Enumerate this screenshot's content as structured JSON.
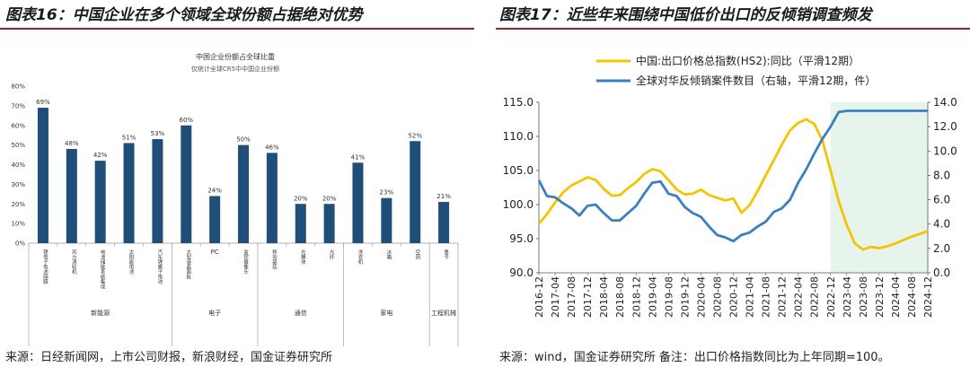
{
  "left_panel": {
    "header": "图表16：中国企业在多个领域全球份额占据绝对优势",
    "source": "来源：日经新闻网，上市公司财报，新浪财经，国金证券研究所"
  },
  "right_panel": {
    "header": "图表17：近些年来围绕中国低价出口的反倾销调查频发",
    "source": "来源：wind，国金证券研究所 备注：出口价格指数同比为上年同期=100。"
  },
  "colors": {
    "bar": "#1f4e79",
    "line_price": "#f5c400",
    "line_cases": "#3b7fbf",
    "shade": "#e6f4ec",
    "header_rule": "#8c2a2a"
  },
  "chart_data": [
    {
      "type": "bar",
      "title": "中国企业份额占全球比重",
      "subtitle": "仅统计全球CR5中中国企业份额",
      "categories": [
        "锂电子电池隔膜",
        "风力涡轮机",
        "电池储能系统集成",
        "太阳能电池",
        "汽车锂离子电池",
        "大型液晶面板",
        "PC",
        "监控摄像头",
        "移动基站",
        "光模块",
        "光纤",
        "洗衣机",
        "冰箱",
        "空调",
        "重卡"
      ],
      "values": [
        69,
        48,
        42,
        51,
        53,
        60,
        24,
        50,
        46,
        20,
        20,
        41,
        23,
        52,
        21
      ],
      "data_labels": [
        "69%",
        "48%",
        "42%",
        "51%",
        "53%",
        "60%",
        "24%",
        "50%",
        "46%",
        "20%",
        "20%",
        "41%",
        "23%",
        "52%",
        "21%"
      ],
      "groups": [
        {
          "name": "新能源",
          "start": 0,
          "end": 4
        },
        {
          "name": "电子",
          "start": 5,
          "end": 7
        },
        {
          "name": "通信",
          "start": 8,
          "end": 10
        },
        {
          "name": "家电",
          "start": 11,
          "end": 13
        },
        {
          "name": "工程机械",
          "start": 14,
          "end": 14
        }
      ],
      "ylim": [
        0,
        80
      ],
      "yticks": [
        "0%",
        "10%",
        "20%",
        "30%",
        "40%",
        "50%",
        "60%",
        "70%",
        "80%"
      ]
    },
    {
      "type": "line",
      "x_range": [
        "2016-12",
        "2024-12"
      ],
      "xtick_labels": [
        "2016-12",
        "2017-04",
        "2017-08",
        "2017-12",
        "2018-04",
        "2018-08",
        "2018-12",
        "2019-04",
        "2019-08",
        "2019-12",
        "2020-04",
        "2020-08",
        "2020-12",
        "2021-04",
        "2021-08",
        "2021-12",
        "2022-04",
        "2022-08",
        "2022-12",
        "2023-04",
        "2023-08",
        "2023-12",
        "2024-04",
        "2024-08",
        "2024-12"
      ],
      "shaded_region": [
        "2022-12",
        "2024-12"
      ],
      "ylim_left": [
        90,
        115
      ],
      "yticks_left": [
        "90.0",
        "95.0",
        "100.0",
        "105.0",
        "110.0",
        "115.0"
      ],
      "ylim_right": [
        0,
        14
      ],
      "yticks_right": [
        "0.0",
        "2.0",
        "4.0",
        "6.0",
        "8.0",
        "10.0",
        "12.0",
        "14.0"
      ],
      "legend_location": "top",
      "series": [
        {
          "name": "中国:出口价格总指数(HS2):同比（平滑12期）",
          "axis": "left",
          "months": [
            0,
            2,
            4,
            6,
            8,
            10,
            12,
            14,
            16,
            18,
            20,
            22,
            24,
            26,
            28,
            30,
            32,
            34,
            36,
            38,
            40,
            42,
            44,
            46,
            48,
            50,
            52,
            54,
            56,
            58,
            60,
            62,
            64,
            66,
            68,
            70,
            72,
            74,
            76,
            78,
            80,
            82,
            84,
            86,
            88,
            90,
            92,
            94,
            96
          ],
          "values": [
            97.2,
            98.6,
            100.3,
            101.8,
            102.8,
            103.4,
            104.0,
            103.6,
            102.3,
            101.3,
            101.4,
            102.4,
            103.3,
            104.5,
            105.2,
            104.9,
            103.6,
            102.2,
            101.5,
            101.6,
            102.2,
            101.4,
            101.0,
            100.6,
            100.9,
            98.8,
            99.9,
            102.0,
            104.3,
            106.5,
            108.8,
            110.9,
            112.0,
            112.5,
            111.8,
            109.4,
            105.0,
            100.5,
            97.0,
            94.3,
            93.4,
            93.8,
            93.6,
            93.9,
            94.3,
            94.8,
            95.3,
            95.7,
            96.1
          ]
        },
        {
          "name": "全球对华反倾销案件数目（右轴，平滑12期，件）",
          "axis": "right",
          "months": [
            0,
            2,
            4,
            6,
            8,
            10,
            12,
            14,
            16,
            18,
            20,
            22,
            24,
            26,
            28,
            30,
            32,
            34,
            36,
            38,
            40,
            42,
            44,
            46,
            48,
            50,
            52,
            54,
            56,
            58,
            60,
            62,
            64,
            66,
            68,
            70,
            72,
            74,
            76,
            78,
            80,
            82,
            84,
            86,
            88,
            90,
            92,
            94,
            96
          ],
          "values": [
            7.6,
            6.3,
            6.2,
            5.7,
            5.3,
            4.7,
            5.5,
            5.6,
            4.9,
            4.3,
            4.3,
            4.9,
            5.5,
            6.5,
            7.4,
            7.5,
            6.5,
            6.3,
            5.4,
            4.9,
            4.6,
            3.8,
            3.1,
            2.9,
            2.6,
            3.1,
            3.3,
            3.8,
            4.2,
            5.0,
            5.3,
            6.0,
            7.4,
            8.5,
            9.8,
            11.0,
            12.0,
            13.2,
            13.3,
            13.3,
            13.3,
            13.3,
            13.3,
            13.3,
            13.3,
            13.3,
            13.3,
            13.3,
            13.3
          ]
        }
      ]
    }
  ]
}
